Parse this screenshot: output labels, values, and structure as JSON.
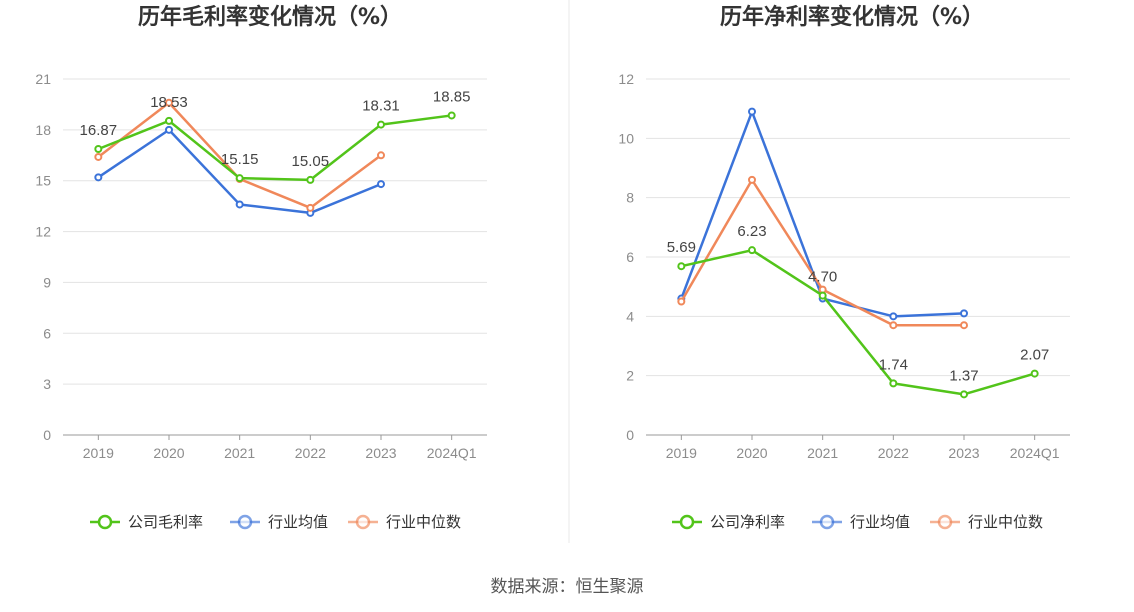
{
  "source": "数据来源：恒生聚源",
  "colors": {
    "company": "#52c41a",
    "industry_avg": "#3b73d9",
    "industry_median": "#f0885a",
    "grid": "#e3e3e3",
    "axis": "#999999",
    "divider": "#e8e8e8"
  },
  "chart_data": [
    {
      "type": "line",
      "title": "历年毛利率变化情况（%）",
      "categories": [
        "2019",
        "2020",
        "2021",
        "2022",
        "2023",
        "2024Q1"
      ],
      "yticks": [
        "0",
        "3",
        "6",
        "9",
        "12",
        "15",
        "18",
        "21"
      ],
      "ylim": [
        0,
        21
      ],
      "grid": true,
      "legend_position": "bottom",
      "series": [
        {
          "name": "公司毛利率",
          "color_key": "company",
          "values": [
            16.87,
            18.53,
            15.15,
            15.05,
            18.31,
            18.85
          ],
          "labels": [
            "16.87",
            "18.53",
            "15.15",
            "15.05",
            "18.31",
            "18.85"
          ]
        },
        {
          "name": "行业均值",
          "color_key": "industry_avg",
          "values": [
            15.2,
            18.0,
            13.6,
            13.1,
            14.8,
            null
          ]
        },
        {
          "name": "行业中位数",
          "color_key": "industry_median",
          "values": [
            16.4,
            19.6,
            15.1,
            13.4,
            16.5,
            null
          ]
        }
      ]
    },
    {
      "type": "line",
      "title": "历年净利率变化情况（%）",
      "categories": [
        "2019",
        "2020",
        "2021",
        "2022",
        "2023",
        "2024Q1"
      ],
      "yticks": [
        "0",
        "2",
        "4",
        "6",
        "8",
        "10",
        "12"
      ],
      "ylim": [
        0,
        12
      ],
      "grid": true,
      "legend_position": "bottom",
      "series": [
        {
          "name": "公司净利率",
          "color_key": "company",
          "values": [
            5.69,
            6.23,
            4.7,
            1.74,
            1.37,
            2.07
          ],
          "labels": [
            "5.69",
            "6.23",
            "4.70",
            "1.74",
            "1.37",
            "2.07"
          ]
        },
        {
          "name": "行业均值",
          "color_key": "industry_avg",
          "values": [
            4.6,
            10.9,
            4.6,
            4.0,
            4.1,
            null
          ]
        },
        {
          "name": "行业中位数",
          "color_key": "industry_median",
          "values": [
            4.5,
            8.6,
            4.9,
            3.7,
            3.7,
            null
          ]
        }
      ]
    }
  ]
}
